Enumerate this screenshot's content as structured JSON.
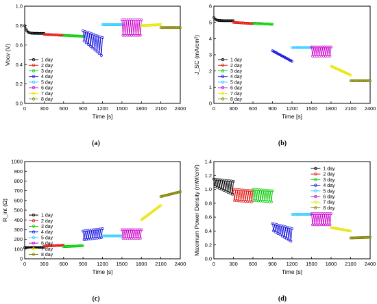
{
  "chart_data": [
    {
      "type": "scatter",
      "panel_label": "(a)",
      "xlabel": "Time [s]",
      "ylabel": "Vocv (V)",
      "xlim": [
        0,
        2400
      ],
      "ylim": [
        0.0,
        1.0
      ],
      "xticks": [
        0,
        300,
        600,
        900,
        1200,
        1500,
        1800,
        2100,
        2400
      ],
      "yticks": [
        0.0,
        0.2,
        0.4,
        0.6,
        0.8,
        1.0
      ],
      "ytick_labels": [
        "0.0",
        "0.2",
        "0.4",
        "0.6",
        "0.8",
        "1.0"
      ],
      "legend": "left",
      "series": [
        {
          "name": "1 day",
          "color": "#000000",
          "mode": "decay",
          "x": [
            0,
            300
          ],
          "start": 0.8,
          "end": 0.72
        },
        {
          "name": "2 day",
          "color": "#e3120b",
          "mode": "flat",
          "x": [
            300,
            600
          ],
          "start": 0.71,
          "end": 0.7
        },
        {
          "name": "3 day",
          "color": "#00cc00",
          "mode": "flat",
          "x": [
            600,
            900
          ],
          "start": 0.7,
          "end": 0.69
        },
        {
          "name": "4 day",
          "color": "#1010e0",
          "mode": "osc_decay",
          "x": [
            900,
            1200
          ],
          "start": 0.7,
          "end": 0.58
        },
        {
          "name": "5 day",
          "color": "#33ccff",
          "mode": "flat",
          "x": [
            1200,
            1500
          ],
          "start": 0.81,
          "end": 0.81
        },
        {
          "name": "6 day",
          "color": "#cc00cc",
          "mode": "osc",
          "x": [
            1500,
            1800
          ],
          "start": 0.78,
          "end": 0.78
        },
        {
          "name": "7 day",
          "color": "#e6e600",
          "mode": "flat",
          "x": [
            1800,
            2100
          ],
          "start": 0.8,
          "end": 0.81
        },
        {
          "name": "8 day",
          "color": "#808000",
          "mode": "flat",
          "x": [
            2100,
            2400
          ],
          "start": 0.78,
          "end": 0.78
        }
      ]
    },
    {
      "type": "scatter",
      "panel_label": "(b)",
      "xlabel": "Time [s]",
      "ylabel": "J_SC (mA/cm²)",
      "xlim": [
        0,
        2400
      ],
      "ylim": [
        0,
        6
      ],
      "xticks": [
        0,
        300,
        600,
        900,
        1200,
        1500,
        1800,
        2100,
        2400
      ],
      "yticks": [
        0,
        1,
        2,
        3,
        4,
        5,
        6
      ],
      "ytick_labels": [
        "0",
        "1",
        "2",
        "3",
        "4",
        "5",
        "6"
      ],
      "legend": "left",
      "series": [
        {
          "name": "1 day",
          "color": "#000000",
          "mode": "decay",
          "x": [
            0,
            300
          ],
          "start": 5.3,
          "end": 5.1
        },
        {
          "name": "2 day",
          "color": "#e3120b",
          "mode": "flat",
          "x": [
            300,
            600
          ],
          "start": 5.0,
          "end": 4.92
        },
        {
          "name": "3 day",
          "color": "#00cc00",
          "mode": "flat",
          "x": [
            600,
            900
          ],
          "start": 4.95,
          "end": 4.88
        },
        {
          "name": "4 day",
          "color": "#1010e0",
          "mode": "flat",
          "x": [
            900,
            1200
          ],
          "start": 3.25,
          "end": 2.6
        },
        {
          "name": "5 day",
          "color": "#33ccff",
          "mode": "flat",
          "x": [
            1200,
            1500
          ],
          "start": 3.45,
          "end": 3.45
        },
        {
          "name": "6 day",
          "color": "#cc00cc",
          "mode": "osc",
          "x": [
            1500,
            1800
          ],
          "start": 3.2,
          "end": 3.2
        },
        {
          "name": "7 day",
          "color": "#e6e600",
          "mode": "flat",
          "x": [
            1800,
            2100
          ],
          "start": 2.3,
          "end": 1.75
        },
        {
          "name": "8 day",
          "color": "#808000",
          "mode": "flat",
          "x": [
            2100,
            2400
          ],
          "start": 1.4,
          "end": 1.4
        }
      ]
    },
    {
      "type": "scatter",
      "panel_label": "(c)",
      "xlabel": "Time [s]",
      "ylabel": "R_int (Ω)",
      "xlim": [
        0,
        2400
      ],
      "ylim": [
        0,
        1000
      ],
      "xticks": [
        0,
        300,
        600,
        900,
        1200,
        1500,
        1800,
        2100,
        2400
      ],
      "yticks": [
        0,
        100,
        200,
        300,
        400,
        500,
        600,
        700,
        800,
        900,
        1000
      ],
      "ytick_labels": [
        "0",
        "100",
        "200",
        "300",
        "400",
        "500",
        "600",
        "700",
        "800",
        "900",
        "1000"
      ],
      "legend": "left",
      "series": [
        {
          "name": "1 day",
          "color": "#000000",
          "mode": "flat",
          "x": [
            0,
            300
          ],
          "start": 115,
          "end": 118
        },
        {
          "name": "2 day",
          "color": "#e3120b",
          "mode": "flat",
          "x": [
            300,
            600
          ],
          "start": 130,
          "end": 140
        },
        {
          "name": "3 day",
          "color": "#00cc00",
          "mode": "flat",
          "x": [
            600,
            900
          ],
          "start": 125,
          "end": 135
        },
        {
          "name": "4 day",
          "color": "#1010e0",
          "mode": "osc",
          "x": [
            900,
            1200
          ],
          "start": 240,
          "end": 265
        },
        {
          "name": "5 day",
          "color": "#33ccff",
          "mode": "flat",
          "x": [
            1200,
            1500
          ],
          "start": 235,
          "end": 235
        },
        {
          "name": "6 day",
          "color": "#cc00cc",
          "mode": "osc",
          "x": [
            1500,
            1800
          ],
          "start": 255,
          "end": 255
        },
        {
          "name": "7 day",
          "color": "#e6e600",
          "mode": "flat",
          "x": [
            1800,
            2100
          ],
          "start": 400,
          "end": 550
        },
        {
          "name": "8 day",
          "color": "#808000",
          "mode": "flat",
          "x": [
            2100,
            2400
          ],
          "start": 640,
          "end": 690
        }
      ]
    },
    {
      "type": "scatter",
      "panel_label": "(d)",
      "xlabel": "Time [s]",
      "ylabel": "Maximum Power Density (mW/cm²)",
      "xlim": [
        0,
        2400
      ],
      "ylim": [
        0.0,
        1.4
      ],
      "xticks": [
        0,
        300,
        600,
        900,
        1200,
        1500,
        1800,
        2100,
        2400
      ],
      "yticks": [
        0.0,
        0.2,
        0.4,
        0.6,
        0.8,
        1.0,
        1.2,
        1.4
      ],
      "ytick_labels": [
        "0.0",
        "0.2",
        "0.4",
        "0.6",
        "0.8",
        "1.0",
        "1.2",
        "1.4"
      ],
      "legend": "right",
      "series": [
        {
          "name": "1 day",
          "color": "#000000",
          "mode": "osc_decay",
          "x": [
            0,
            300
          ],
          "start": 1.1,
          "end": 1.02
        },
        {
          "name": "2 day",
          "color": "#e3120b",
          "mode": "osc",
          "x": [
            300,
            600
          ],
          "start": 0.92,
          "end": 0.9
        },
        {
          "name": "3 day",
          "color": "#00cc00",
          "mode": "osc",
          "x": [
            600,
            900
          ],
          "start": 0.92,
          "end": 0.9
        },
        {
          "name": "4 day",
          "color": "#1010e0",
          "mode": "osc_decay",
          "x": [
            900,
            1200
          ],
          "start": 0.46,
          "end": 0.34
        },
        {
          "name": "5 day",
          "color": "#33ccff",
          "mode": "flat",
          "x": [
            1200,
            1500
          ],
          "start": 0.64,
          "end": 0.64
        },
        {
          "name": "6 day",
          "color": "#cc00cc",
          "mode": "osc",
          "x": [
            1500,
            1800
          ],
          "start": 0.57,
          "end": 0.57
        },
        {
          "name": "7 day",
          "color": "#e6e600",
          "mode": "flat",
          "x": [
            1800,
            2100
          ],
          "start": 0.45,
          "end": 0.4
        },
        {
          "name": "8 day",
          "color": "#808000",
          "mode": "flat",
          "x": [
            2100,
            2400
          ],
          "start": 0.3,
          "end": 0.31
        }
      ]
    }
  ]
}
